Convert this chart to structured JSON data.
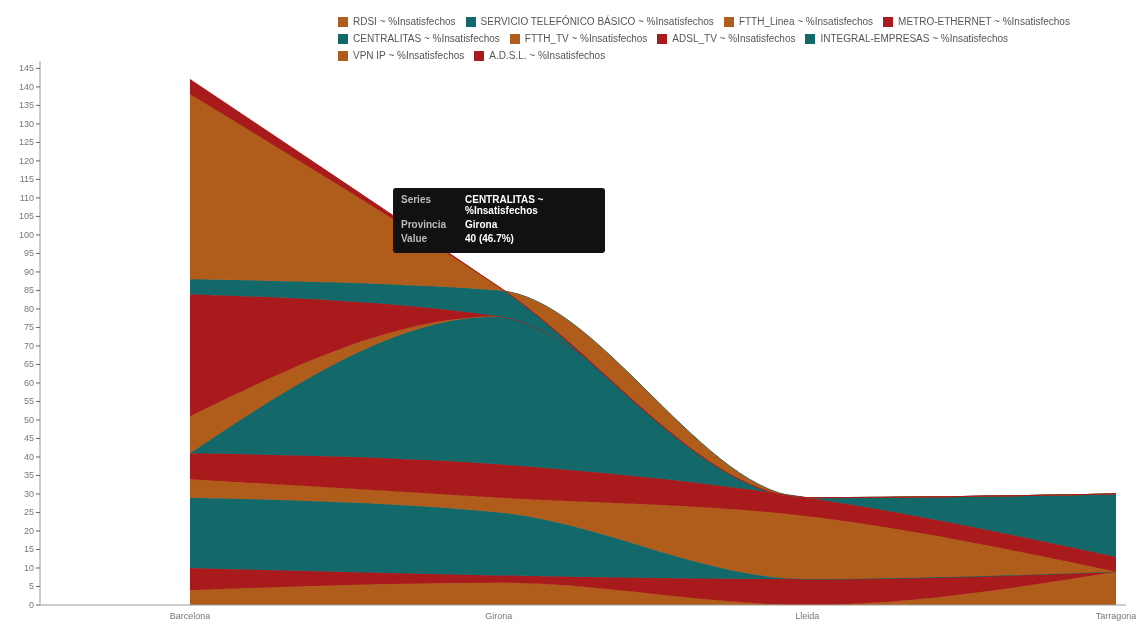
{
  "chart_data": {
    "type": "area",
    "stacked": true,
    "categories": [
      "Barcelona",
      "Girona",
      "Lleida",
      "Tarragona"
    ],
    "ylim": [
      0,
      147
    ],
    "yticks": [
      0,
      5,
      10,
      15,
      20,
      25,
      30,
      35,
      40,
      45,
      50,
      55,
      60,
      65,
      70,
      75,
      80,
      85,
      90,
      95,
      100,
      105,
      110,
      115,
      120,
      125,
      130,
      135,
      140,
      145
    ],
    "grid": false,
    "legend": "top",
    "series": [
      {
        "name": "RDSI ~ %Insatisfechos",
        "color": "#b05c1a",
        "values": [
          4,
          6,
          0,
          9
        ]
      },
      {
        "color": "#a91a1c",
        "values": [
          6,
          2,
          7,
          0
        ]
      },
      {
        "name": "SERVICIO TELEFÓNICO BÁSICO ~ %Insatisfechos",
        "color": "#13696a",
        "values": [
          19,
          17,
          0,
          0
        ]
      },
      {
        "name": "FTTH_Linea ~ %Insatisfechos",
        "color": "#b05c1a",
        "values": [
          5,
          4,
          17,
          0
        ]
      },
      {
        "name": "METRO-ETHERNET ~ %Insatisfechos",
        "color": "#a91a1c",
        "values": [
          7,
          9,
          5,
          4
        ]
      },
      {
        "name": "CENTRALITAS ~ %Insatisfechos",
        "color": "#13696a",
        "values": [
          0,
          40,
          0,
          17
        ]
      },
      {
        "name": "FTTH_TV ~ %Insatisfechos",
        "color": "#b05c1a",
        "values": [
          10,
          0,
          0,
          0
        ]
      },
      {
        "name": "ADSL_TV ~ %Insatisfechos",
        "color": "#a91a1c",
        "values": [
          33,
          0,
          0,
          0
        ]
      },
      {
        "name": "INTEGRAL-EMPRESAS ~ %Insatisfechos",
        "color": "#13696a",
        "values": [
          4,
          7,
          0,
          0
        ]
      },
      {
        "name": "VPN IP ~ %Insatisfechos",
        "color": "#b05c1a",
        "values": [
          50,
          1,
          0,
          0
        ]
      },
      {
        "name": "A.D.S.L. ~ %Insatisfechos",
        "color": "#a91a1c",
        "values": [
          4,
          0,
          0,
          0
        ]
      }
    ],
    "annotations": [
      "Series",
      "CENTRALITAS ~ %Insatisfechos",
      "Provincia",
      "Girona",
      "Value",
      "40 (46.7%)"
    ]
  }
}
